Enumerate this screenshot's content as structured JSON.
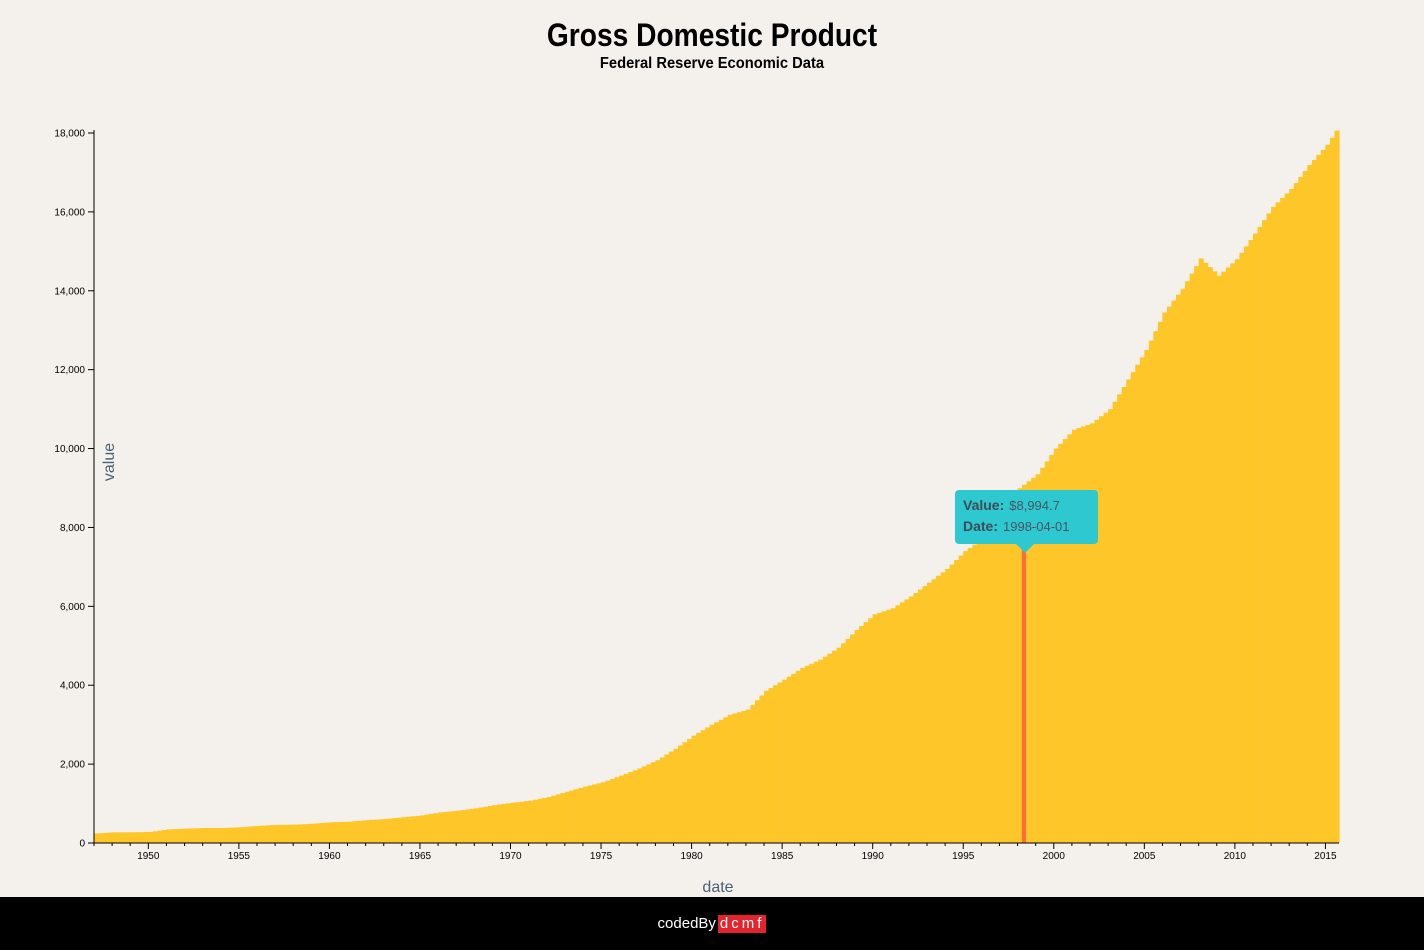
{
  "chart_data": {
    "type": "bar",
    "title": "Gross Domestic Product",
    "subtitle": "Federal Reserve Economic Data",
    "xlabel": "date",
    "ylabel": "value",
    "ylim": [
      0,
      18000
    ],
    "xlim": [
      "1947-01-01",
      "2015-07-01"
    ],
    "yticks": [
      "0",
      "2,000",
      "4,000",
      "6,000",
      "8,000",
      "10,000",
      "12,000",
      "14,000",
      "16,000",
      "18,000"
    ],
    "xticks": [
      "1950",
      "1955",
      "1960",
      "1965",
      "1970",
      "1975",
      "1980",
      "1985",
      "1990",
      "1995",
      "2000",
      "2005",
      "2010",
      "2015"
    ],
    "bar_color": "#ffc629",
    "highlight_color": "#ff6a3a",
    "frequency": "quarterly",
    "highlight": {
      "value_label": "Value:",
      "value": "$8,994.7",
      "date_label": "Date:",
      "date": "1998-04-01"
    },
    "series": [
      {
        "x": [
          "1947",
          "1948",
          "1949",
          "1950",
          "1951",
          "1952",
          "1953",
          "1954",
          "1955",
          "1956",
          "1957",
          "1958",
          "1959",
          "1960",
          "1961",
          "1962",
          "1963",
          "1964",
          "1965",
          "1966",
          "1967",
          "1968",
          "1969",
          "1970",
          "1971",
          "1972",
          "1973",
          "1974",
          "1975",
          "1976",
          "1977",
          "1978",
          "1979",
          "1980",
          "1981",
          "1982",
          "1983",
          "1984",
          "1985",
          "1986",
          "1987",
          "1988",
          "1989",
          "1990",
          "1991",
          "1992",
          "1993",
          "1994",
          "1995",
          "1996",
          "1997",
          "1998",
          "1999",
          "2000",
          "2001",
          "2002",
          "2003",
          "2004",
          "2005",
          "2006",
          "2007",
          "2008",
          "2009",
          "2010",
          "2011",
          "2012",
          "2013",
          "2014",
          "2015",
          "2015.5"
        ],
        "values": [
          243,
          270,
          272,
          280,
          345,
          365,
          380,
          380,
          400,
          435,
          460,
          465,
          490,
          525,
          540,
          580,
          610,
          655,
          700,
          775,
          820,
          880,
          960,
          1020,
          1075,
          1165,
          1300,
          1430,
          1540,
          1710,
          1890,
          2100,
          2390,
          2720,
          3000,
          3250,
          3380,
          3860,
          4140,
          4440,
          4650,
          4950,
          5400,
          5800,
          5950,
          6250,
          6600,
          6950,
          7400,
          7730,
          8230,
          8995,
          9350,
          10000,
          10480,
          10640,
          11000,
          11750,
          12500,
          13450,
          14050,
          14820,
          14380,
          14800,
          15450,
          16130,
          16580,
          17190,
          17700,
          18060
        ]
      }
    ]
  },
  "footer": {
    "prefix": "codedBy",
    "brand": "dcmf"
  }
}
